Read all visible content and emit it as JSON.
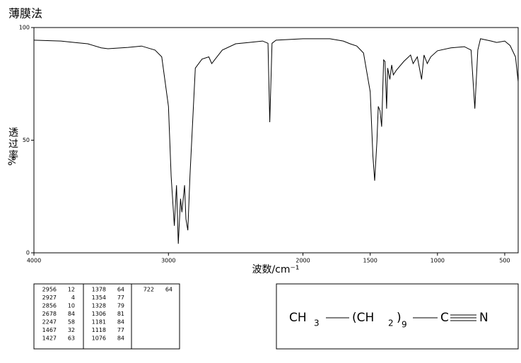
{
  "chart_data": {
    "type": "line",
    "title": "薄膜法",
    "ylabel": "透过率",
    "ylabel_unit": "%",
    "xlabel": "波数/cm⁻¹",
    "xlim": [
      4000,
      400
    ],
    "ylim": [
      0,
      100
    ],
    "xticks": [
      4000,
      3000,
      2000,
      1500,
      1000,
      500
    ],
    "yticks": [
      0,
      50,
      100
    ],
    "x": [
      4000,
      3800,
      3700,
      3600,
      3500,
      3450,
      3300,
      3200,
      3100,
      3050,
      3000,
      2980,
      2956,
      2940,
      2927,
      2910,
      2900,
      2880,
      2870,
      2856,
      2840,
      2800,
      2750,
      2700,
      2678,
      2600,
      2500,
      2400,
      2300,
      2260,
      2247,
      2230,
      2200,
      2000,
      1800,
      1700,
      1650,
      1600,
      1550,
      1500,
      1480,
      1467,
      1450,
      1440,
      1427,
      1415,
      1400,
      1390,
      1378,
      1370,
      1354,
      1340,
      1328,
      1306,
      1250,
      1200,
      1181,
      1150,
      1118,
      1100,
      1076,
      1050,
      1000,
      900,
      800,
      750,
      722,
      700,
      680,
      600,
      560,
      500,
      460,
      420,
      400
    ],
    "series": [
      {
        "color": "#000000",
        "values": [
          94.4,
          94,
          93.4,
          92.8,
          91,
          90.6,
          91.2,
          91.8,
          90,
          87,
          65,
          34,
          12,
          30,
          4,
          24,
          18,
          30,
          15,
          10,
          34,
          82,
          86,
          87,
          84,
          90,
          92.8,
          93.4,
          94,
          93,
          58,
          93,
          94.4,
          95,
          95,
          94,
          92.8,
          91.8,
          88.7,
          71.5,
          43,
          32,
          49.5,
          65,
          63,
          56,
          85.6,
          85,
          64,
          82,
          77,
          83.4,
          79,
          81,
          85,
          87.8,
          84,
          87,
          77,
          87.8,
          84,
          87,
          89.7,
          91,
          91.5,
          90,
          64,
          90,
          95,
          94,
          93.4,
          94,
          92,
          87,
          76
        ]
      }
    ]
  },
  "peak_table": [
    [
      [
        2956,
        12
      ],
      [
        2927,
        4
      ],
      [
        2856,
        10
      ],
      [
        2678,
        84
      ],
      [
        2247,
        58
      ],
      [
        1467,
        32
      ],
      [
        1427,
        63
      ]
    ],
    [
      [
        1378,
        64
      ],
      [
        1354,
        77
      ],
      [
        1328,
        79
      ],
      [
        1306,
        81
      ],
      [
        1181,
        84
      ],
      [
        1118,
        77
      ],
      [
        1076,
        84
      ]
    ],
    [
      [
        722,
        64
      ]
    ]
  ],
  "formula": [
    "CH",
    "3",
    "(CH",
    "2",
    ")",
    "9",
    "C",
    "N"
  ]
}
